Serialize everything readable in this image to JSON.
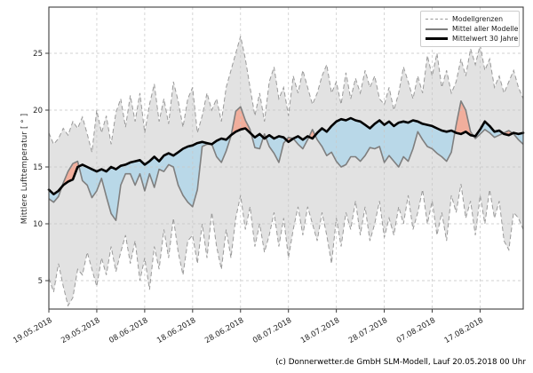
{
  "caption": "(c) Donnerwetter.de GmbH SLM-Modell, Lauf 20.05.2018 00 Uhr",
  "colors": {
    "envelope_fill": "#e2e2e2",
    "envelope_edge": "#9a9a9a",
    "mean_line": "#7f7f7f",
    "clim_line": "#000000",
    "warm_fill": "#f1ae9c",
    "cool_fill": "#b9d8e8",
    "grid": "#c9c9c9",
    "spine": "#3c3c3c",
    "text": "#262626"
  },
  "chart_data": {
    "type": "line",
    "title": "",
    "xlabel": "",
    "ylabel": "Mittlere Lufttemperatur [ ° ]",
    "ylim": [
      2.5,
      29.1
    ],
    "yticks": [
      5,
      10,
      15,
      20,
      25
    ],
    "xtick_labels": [
      "19.05.2018",
      "29.05.2018",
      "08.06.2018",
      "18.06.2018",
      "28.06.2018",
      "08.07.2018",
      "18.07.2018",
      "28.07.2018",
      "07.08.2018",
      "17.08.2018"
    ],
    "xtick_days": [
      0,
      10,
      20,
      30,
      40,
      50,
      60,
      70,
      80,
      90
    ],
    "x_days_total": 99,
    "start_date": "19.05.2018",
    "grid": true,
    "legend_position": "top-right",
    "legend": [
      {
        "label": "Modellgrenzen",
        "style": "dashed-gray"
      },
      {
        "label": "Mittel aller Modelle",
        "style": "solid-gray"
      },
      {
        "label": "Mittelwert 30 Jahre",
        "style": "solid-black-thick"
      }
    ],
    "series": [
      {
        "name": "Modellgrenze oben",
        "role": "upper_bound",
        "values": [
          18.0,
          17.0,
          17.5,
          18.4,
          17.8,
          19.0,
          18.4,
          19.4,
          17.9,
          16.3,
          20.0,
          18.0,
          19.5,
          17.0,
          19.8,
          21.0,
          18.5,
          21.3,
          19.0,
          21.5,
          18.0,
          20.5,
          22.3,
          19.0,
          21.0,
          18.8,
          22.5,
          20.8,
          18.5,
          21.0,
          22.0,
          18.0,
          19.5,
          21.5,
          20.0,
          21.0,
          19.0,
          22.0,
          23.5,
          25.0,
          26.5,
          24.5,
          22.0,
          19.5,
          21.5,
          19.0,
          22.5,
          23.8,
          21.0,
          22.0,
          19.5,
          23.0,
          21.5,
          23.5,
          22.0,
          20.5,
          21.5,
          23.0,
          24.0,
          21.5,
          22.5,
          20.5,
          23.3,
          21.0,
          22.8,
          21.5,
          23.5,
          22.0,
          23.0,
          21.0,
          20.5,
          22.0,
          20.0,
          21.5,
          23.8,
          22.5,
          21.0,
          23.0,
          21.5,
          24.8,
          23.0,
          25.0,
          22.0,
          23.5,
          21.5,
          22.5,
          24.5,
          23.0,
          25.4,
          24.0,
          25.7,
          23.5,
          24.5,
          22.0,
          23.0,
          21.5,
          22.5,
          23.5,
          22.0,
          21.0
        ]
      },
      {
        "name": "Modellgrenze unten",
        "role": "lower_bound",
        "values": [
          5.2,
          4.0,
          6.5,
          4.5,
          2.8,
          3.5,
          6.0,
          5.5,
          7.5,
          6.0,
          4.5,
          7.0,
          5.5,
          8.0,
          5.8,
          7.5,
          9.0,
          6.5,
          8.5,
          5.0,
          7.0,
          4.2,
          8.0,
          6.0,
          9.5,
          7.0,
          10.5,
          7.5,
          5.5,
          8.5,
          9.0,
          6.5,
          10.0,
          7.0,
          11.0,
          8.0,
          6.0,
          9.5,
          7.0,
          10.5,
          12.5,
          9.5,
          11.5,
          8.0,
          10.0,
          7.5,
          9.0,
          11.0,
          8.0,
          10.5,
          7.0,
          9.5,
          11.5,
          9.0,
          11.5,
          10.0,
          8.5,
          11.0,
          9.0,
          6.5,
          10.5,
          8.0,
          11.0,
          9.5,
          12.0,
          9.0,
          11.5,
          8.5,
          10.0,
          12.0,
          8.8,
          10.5,
          9.0,
          11.5,
          10.0,
          12.5,
          9.5,
          11.0,
          13.0,
          10.0,
          12.0,
          9.0,
          11.0,
          8.5,
          12.5,
          11.0,
          13.5,
          10.5,
          12.0,
          9.0,
          12.5,
          10.0,
          13.0,
          10.5,
          12.0,
          8.5,
          7.7,
          11.0,
          10.5,
          9.5
        ]
      },
      {
        "name": "Mittel aller Modelle",
        "role": "model_mean",
        "values": [
          12.2,
          11.9,
          12.4,
          13.6,
          14.6,
          15.3,
          15.5,
          13.8,
          13.4,
          12.3,
          12.9,
          14.0,
          12.4,
          10.9,
          10.3,
          13.4,
          14.4,
          14.4,
          13.4,
          14.4,
          12.9,
          14.4,
          13.2,
          14.8,
          14.6,
          15.2,
          15.0,
          13.4,
          12.5,
          11.9,
          11.5,
          13.0,
          16.8,
          17.0,
          17.0,
          15.9,
          15.4,
          16.4,
          17.7,
          19.9,
          20.3,
          19.1,
          18.3,
          16.7,
          16.6,
          17.9,
          16.8,
          16.2,
          15.4,
          17.1,
          17.6,
          17.5,
          17.0,
          16.6,
          17.4,
          18.3,
          17.4,
          16.8,
          16.0,
          16.3,
          15.5,
          15.0,
          15.2,
          15.9,
          15.9,
          15.5,
          16.0,
          16.7,
          16.6,
          16.8,
          15.4,
          16.0,
          15.5,
          15.0,
          15.9,
          15.5,
          16.6,
          18.1,
          17.4,
          16.8,
          16.6,
          16.2,
          15.9,
          15.5,
          16.3,
          18.7,
          20.8,
          20.0,
          18.1,
          17.5,
          17.9,
          18.3,
          18.0,
          17.6,
          17.8,
          18.0,
          18.2,
          17.9,
          17.4,
          17.0
        ]
      },
      {
        "name": "Mittelwert 30 Jahre",
        "role": "climate_mean_30y",
        "values": [
          13.0,
          12.6,
          12.9,
          13.4,
          13.7,
          13.9,
          15.0,
          15.2,
          15.0,
          14.8,
          14.6,
          14.8,
          14.6,
          15.0,
          14.8,
          15.1,
          15.2,
          15.4,
          15.5,
          15.6,
          15.2,
          15.5,
          15.9,
          15.5,
          16.0,
          16.2,
          16.0,
          16.3,
          16.6,
          16.8,
          16.9,
          17.1,
          17.2,
          17.1,
          17.0,
          17.3,
          17.5,
          17.4,
          17.8,
          18.1,
          18.3,
          18.4,
          18.0,
          17.6,
          17.9,
          17.5,
          17.8,
          17.5,
          17.7,
          17.6,
          17.2,
          17.5,
          17.7,
          17.4,
          17.7,
          17.5,
          18.0,
          18.4,
          18.1,
          18.6,
          19.0,
          19.2,
          19.1,
          19.3,
          19.1,
          19.0,
          18.7,
          18.4,
          18.8,
          19.1,
          18.7,
          19.0,
          18.6,
          18.9,
          19.0,
          18.9,
          19.1,
          19.0,
          18.8,
          18.7,
          18.6,
          18.4,
          18.2,
          18.1,
          18.2,
          18.0,
          17.9,
          18.1,
          17.8,
          17.7,
          18.3,
          19.0,
          18.6,
          18.1,
          18.2,
          17.9,
          17.8,
          18.0,
          17.9,
          18.0
        ]
      }
    ]
  }
}
